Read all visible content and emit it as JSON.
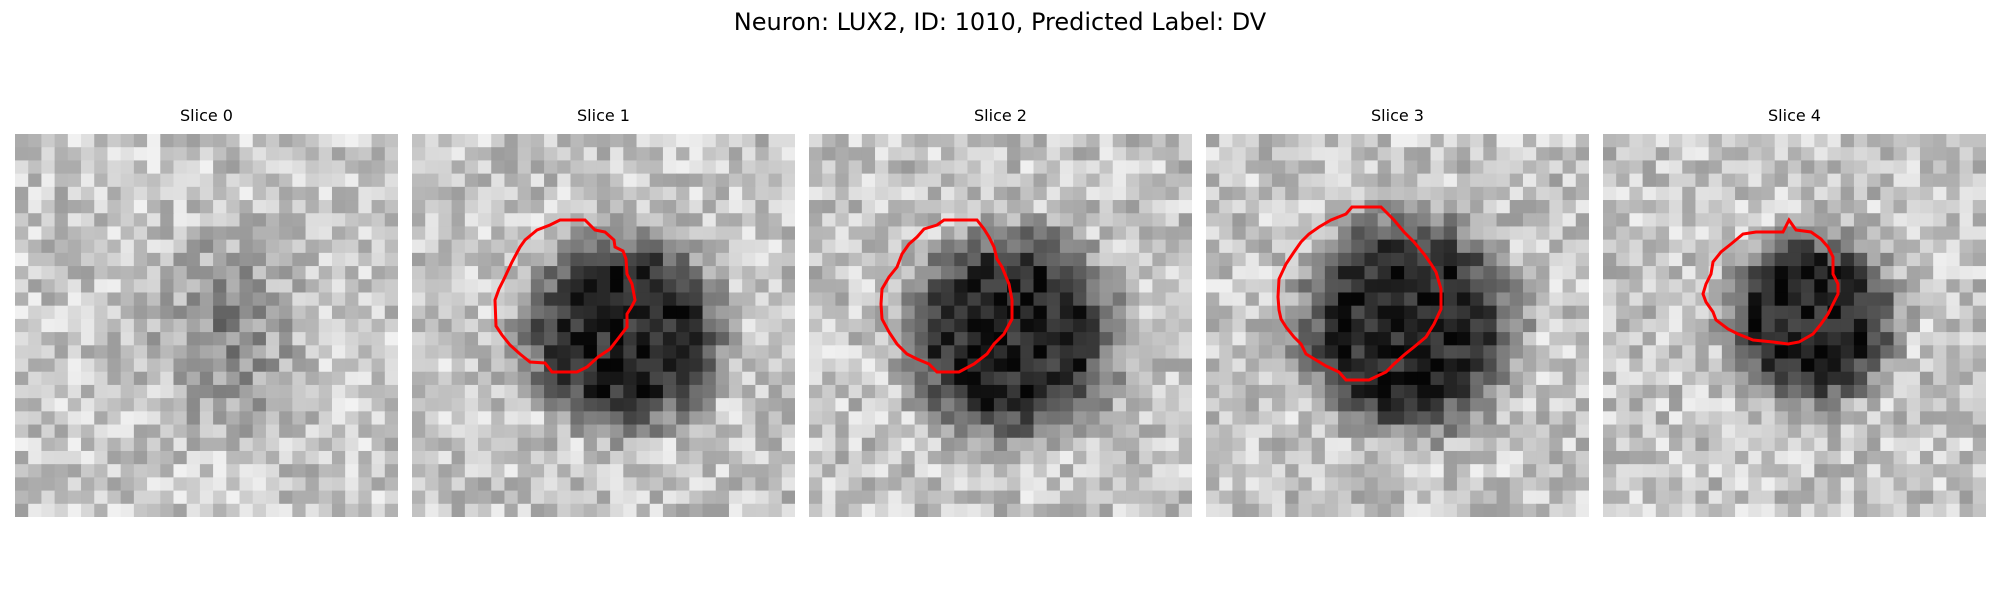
{
  "figure": {
    "title": "Neuron: LUX2, ID: 1010, Predicted Label: DV"
  },
  "contour_color": "#ff0000",
  "slices": [
    {
      "title": "Slice 0",
      "has_contour": false
    },
    {
      "title": "Slice 1",
      "has_contour": true
    },
    {
      "title": "Slice 2",
      "has_contour": true
    },
    {
      "title": "Slice 3",
      "has_contour": true
    },
    {
      "title": "Slice 4",
      "has_contour": true
    }
  ]
}
